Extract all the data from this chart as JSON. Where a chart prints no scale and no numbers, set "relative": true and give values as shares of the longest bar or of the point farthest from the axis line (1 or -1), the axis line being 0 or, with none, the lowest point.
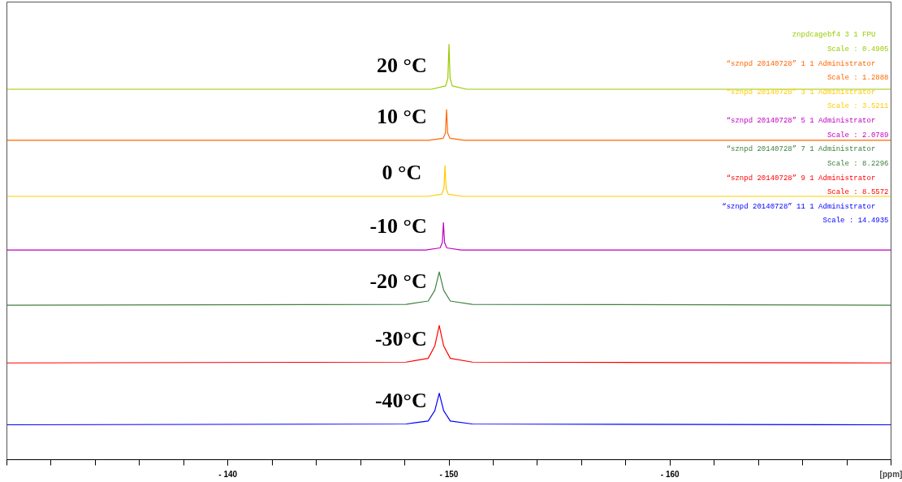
{
  "chart_data": {
    "type": "line",
    "relative": true,
    "xlabel": "[ppm]",
    "xlim": [
      -130,
      -170
    ],
    "xticks": [
      {
        "value": -140,
        "label": "- 140"
      },
      {
        "value": -150,
        "label": "- 150"
      },
      {
        "value": -160,
        "label": "- 160"
      }
    ],
    "tick_labels": "x",
    "grid": false,
    "legend": false,
    "marker": "none",
    "line_style": "solid",
    "series": [
      {
        "name": "20 °C",
        "color": "#99cc00",
        "x": [
          -130,
          -149.2,
          -149.85,
          -149.95,
          -150,
          -150.05,
          -150.15,
          -150.8,
          -170
        ],
        "values": [
          0.892,
          0.892,
          0.9,
          0.918,
          1,
          0.918,
          0.9,
          0.892,
          0.892
        ]
      },
      {
        "name": "10 °C",
        "color": "#ff6600",
        "x": [
          -130,
          -149.09,
          -149.74,
          -149.84,
          -149.89,
          -149.94,
          -150.04,
          -150.69,
          -170
        ],
        "values": [
          0.769,
          0.769,
          0.774,
          0.787,
          0.843,
          0.787,
          0.774,
          0.769,
          0.769
        ]
      },
      {
        "name": "0  °C",
        "color": "#ffcc00",
        "x": [
          -130,
          -149.02,
          -149.67,
          -149.77,
          -149.82,
          -149.87,
          -149.97,
          -150.62,
          -170
        ],
        "values": [
          0.634,
          0.634,
          0.639,
          0.653,
          0.708,
          0.653,
          0.639,
          0.634,
          0.634
        ]
      },
      {
        "name": "-10 °C",
        "color": "#c000c0",
        "x": [
          -130,
          -148.95,
          -149.6,
          -149.7,
          -149.75,
          -149.8,
          -149.9,
          -150.55,
          -170
        ],
        "values": [
          0.505,
          0.505,
          0.51,
          0.523,
          0.571,
          0.523,
          0.51,
          0.505,
          0.505
        ]
      },
      {
        "name": "-20 °C",
        "color": "#408040",
        "x": [
          -130,
          -148.06,
          -149.06,
          -149.36,
          -149.56,
          -149.76,
          -150.06,
          -151.06,
          -170
        ],
        "values": [
          0.372,
          0.374,
          0.382,
          0.408,
          0.452,
          0.408,
          0.382,
          0.374,
          0.372
        ]
      },
      {
        "name": "-30°C",
        "color": "#ff0000",
        "x": [
          -130,
          -148.06,
          -149.06,
          -149.36,
          -149.56,
          -149.76,
          -150.06,
          -151.06,
          -170
        ],
        "values": [
          0.233,
          0.235,
          0.244,
          0.274,
          0.323,
          0.274,
          0.244,
          0.235,
          0.233
        ]
      },
      {
        "name": "-40°C",
        "color": "#0000ff",
        "x": [
          -130,
          -148.06,
          -149.06,
          -149.36,
          -149.56,
          -149.76,
          -150.06,
          -151.06,
          -170
        ],
        "values": [
          0.084,
          0.086,
          0.093,
          0.118,
          0.16,
          0.118,
          0.093,
          0.086,
          0.084
        ]
      }
    ],
    "annotations": [
      "znpdcagebf4  3  1  FPU",
      "Scale : 0.4905",
      "“sznpd 20140728”  1  1  Administrator",
      "Scale : 1.2888",
      "“sznpd 20140728”  3  1  Administrator",
      "Scale : 3.5211",
      "“sznpd 20140728”  5  1  Administrator",
      "Scale : 2.0789",
      "“sznpd 20140728”  7  1  Administrator",
      "Scale : 8.2296",
      "“sznpd 20140728”  9  1  Administrator",
      "Scale : 8.5572",
      "“sznpd 20140728”  11  1  Administrator",
      "Scale : 14.4935"
    ]
  }
}
